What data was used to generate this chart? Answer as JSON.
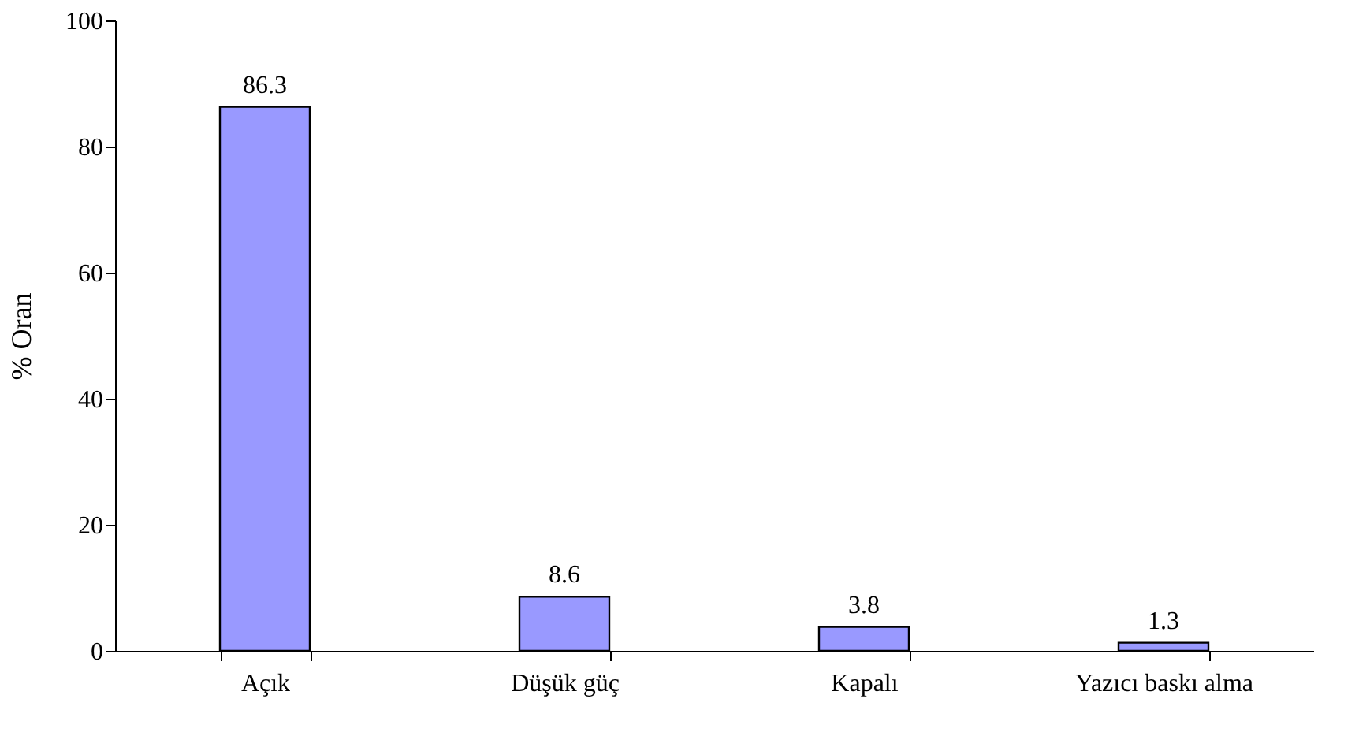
{
  "chart_data": {
    "type": "bar",
    "ylabel": "% Oran",
    "categories": [
      "Açık",
      "Düşük güç",
      "Kapalı",
      "Yazıcı baskı alma"
    ],
    "values": [
      86.3,
      8.6,
      3.8,
      1.3
    ],
    "color": "#9999ff",
    "ylim": [
      0,
      100
    ],
    "yticks": [
      0,
      20,
      40,
      60,
      80,
      100
    ],
    "grid": false,
    "data_labels": true
  }
}
